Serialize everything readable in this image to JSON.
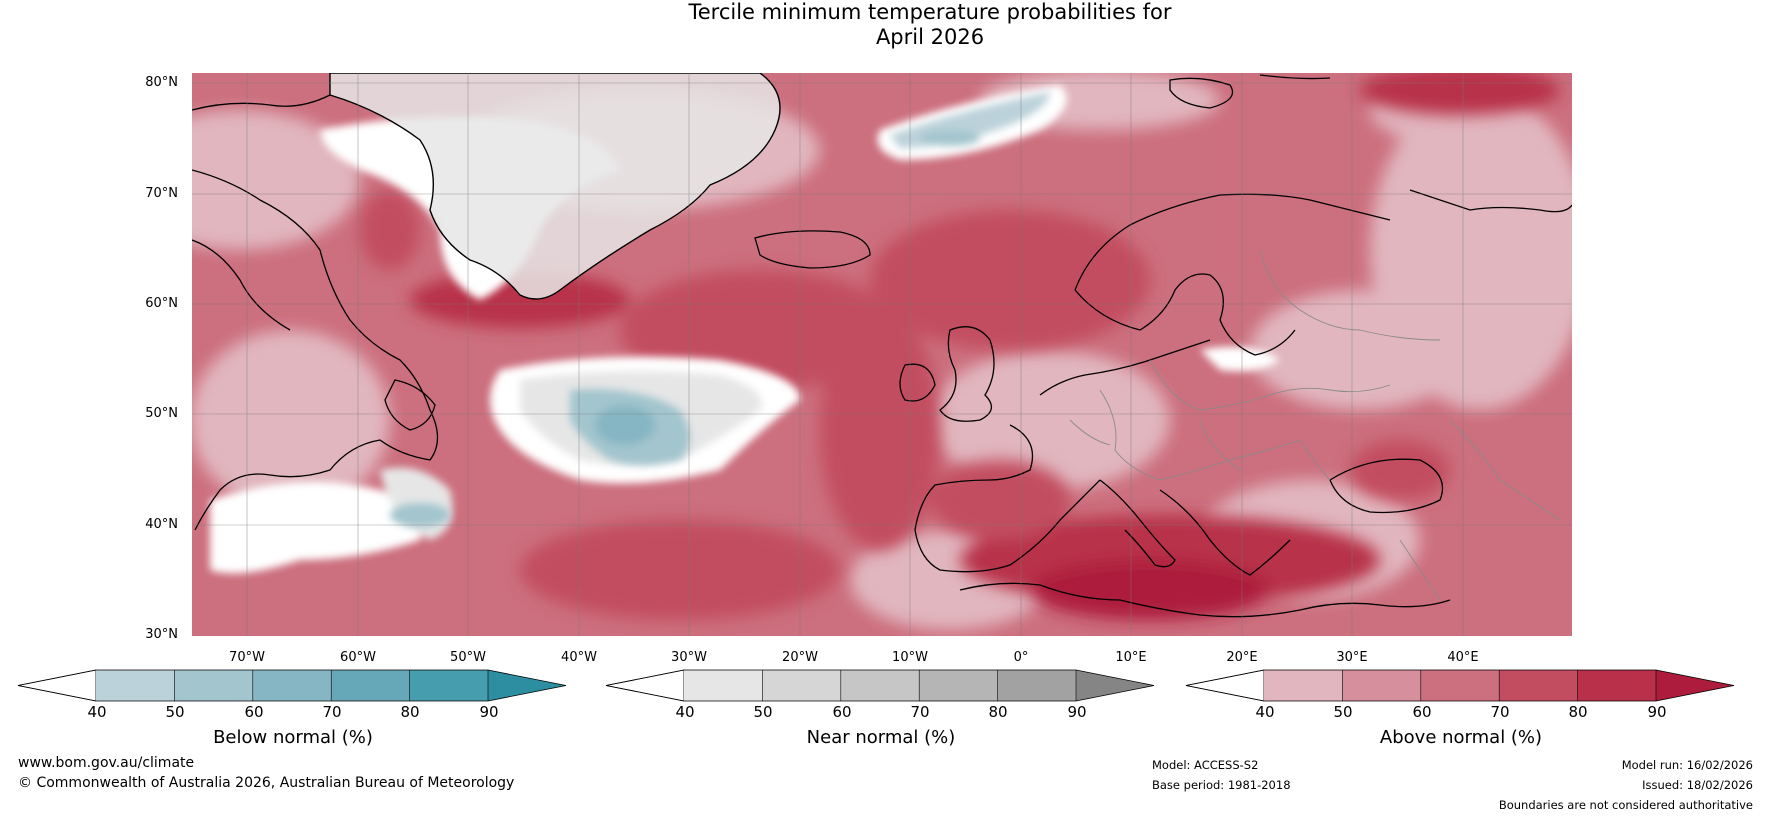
{
  "title_line1": "Tercile minimum temperature probabilities for",
  "title_line2": "April 2026",
  "lat_labels": [
    "80°N",
    "70°N",
    "60°N",
    "50°N",
    "40°N",
    "30°N"
  ],
  "lon_labels": [
    "70°W",
    "60°W",
    "50°W",
    "40°W",
    "30°W",
    "20°W",
    "10°W",
    "0°",
    "10°E",
    "20°E",
    "30°E",
    "40°E"
  ],
  "colorbars": [
    {
      "title": "Below normal (%)",
      "ticks": [
        "40",
        "50",
        "60",
        "70",
        "80",
        "90"
      ],
      "colors": [
        "#ffffff",
        "#bcd2da",
        "#a3c5ce",
        "#86b6c3",
        "#66a8b8",
        "#469dae",
        "#2d8ea1"
      ]
    },
    {
      "title": "Near normal (%)",
      "ticks": [
        "40",
        "50",
        "60",
        "70",
        "80",
        "90"
      ],
      "colors": [
        "#ffffff",
        "#e6e6e6",
        "#d6d6d6",
        "#c6c6c6",
        "#b5b5b5",
        "#a2a2a2",
        "#858585"
      ]
    },
    {
      "title": "Above normal (%)",
      "ticks": [
        "40",
        "50",
        "60",
        "70",
        "80",
        "90"
      ],
      "colors": [
        "#ffffff",
        "#e1b6be",
        "#d68f9c",
        "#cc6f7e",
        "#c24d61",
        "#b8304a",
        "#ad1c3c"
      ]
    }
  ],
  "footer": {
    "website": "www.bom.gov.au/climate",
    "copyright": "© Commonwealth of Australia 2026, Australian Bureau of Meteorology",
    "model": "Model: ACCESS-S2",
    "base_period": "Base period: 1981-2018",
    "model_run": "Model run: 16/02/2026",
    "issued": "Issued: 18/02/2026",
    "disclaimer": "Boundaries are not considered authoritative"
  }
}
